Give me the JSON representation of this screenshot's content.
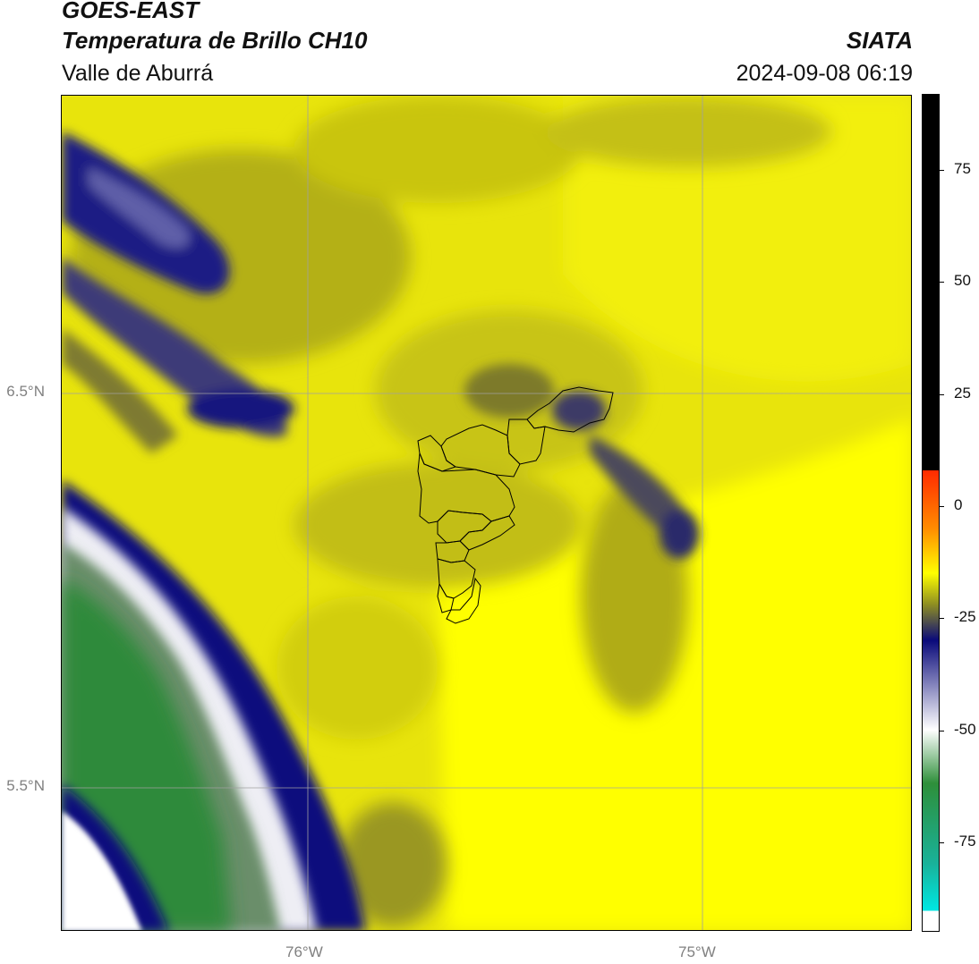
{
  "header": {
    "title_line1": "GOES-EAST",
    "title_line2": "Temperatura de Brillo CH10",
    "subtitle": "Valle de Aburrá",
    "agency": "SIATA",
    "datetime": "2024-09-08 06:19"
  },
  "map": {
    "latitude_labels": [
      "6.5°N",
      "5.5°N"
    ],
    "longitude_labels": [
      "76°W",
      "75°W"
    ],
    "overlay": "Valle de Aburrá municipal boundaries"
  },
  "colorbar": {
    "tick_labels": [
      "75",
      "50",
      "25",
      "0",
      "-25",
      "-50",
      "-75"
    ],
    "tick_values": [
      75,
      50,
      25,
      0,
      -25,
      -50,
      -75
    ],
    "range": [
      -95,
      92
    ],
    "colors": {
      "cyan": "#00e5e0",
      "teal": "#19b29a",
      "green": "#2e8f3a",
      "white": "#ffffff",
      "navy": "#0a0a7a",
      "olive": "#8e8e22",
      "yellow": "#ffff00",
      "orange": "#ff8c00",
      "red": "#ff2a00",
      "black": "#000000"
    }
  }
}
